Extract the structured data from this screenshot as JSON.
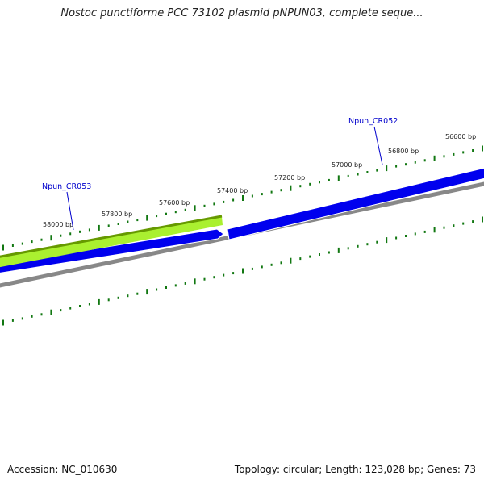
{
  "title": "Nostoc punctiforme PCC 73102 plasmid pNPUN03, complete seque...",
  "footer": {
    "accession": "Accession: NC_010630",
    "summary": "Topology: circular; Length: 123,028 bp; Genes: 73"
  },
  "scale_labels": [
    "58000 bp",
    "57800 bp",
    "57600 bp",
    "57400 bp",
    "57200 bp",
    "57000 bp",
    "56800 bp",
    "56600 bp"
  ],
  "features": [
    {
      "name": "Npun_CR053",
      "color": "#0000cc"
    },
    {
      "name": "Npun_CR052",
      "color": "#0000cc"
    }
  ],
  "colors": {
    "forward_gene": "#0000ee",
    "reverse_gene": "#99ee22",
    "reverse_gene_edge": "#669900",
    "backbone": "#888888",
    "ticks": "#117711",
    "label_line": "#0000cc"
  }
}
